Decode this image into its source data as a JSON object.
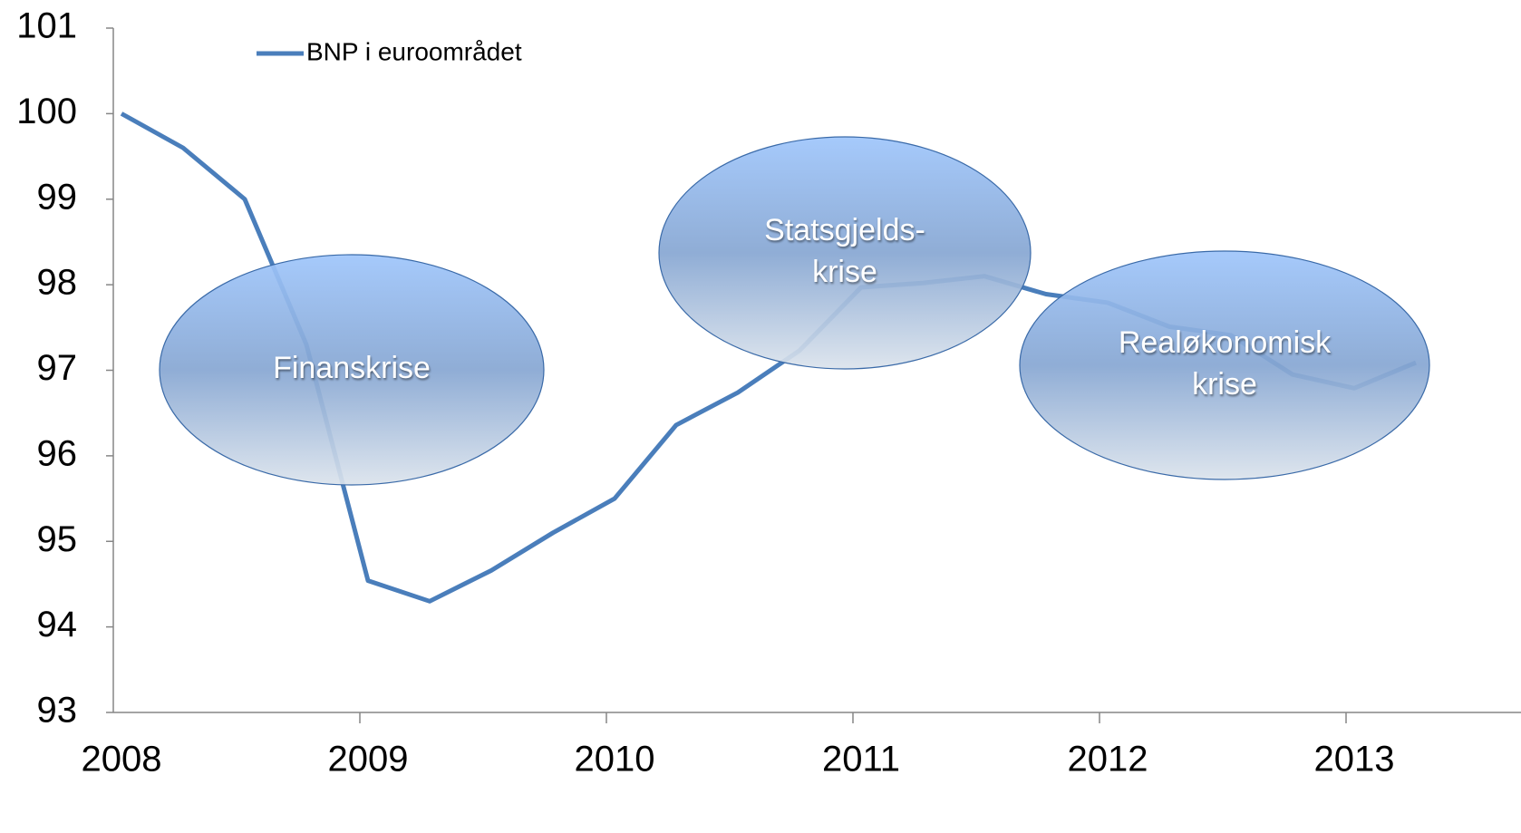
{
  "chart_data": {
    "type": "line",
    "categories": [
      "2008",
      null,
      null,
      null,
      "2009",
      null,
      null,
      null,
      "2010",
      null,
      null,
      null,
      "2011",
      null,
      null,
      null,
      "2012",
      null,
      null,
      null,
      "2013",
      null
    ],
    "series": [
      {
        "name": "BNP i euroområdet",
        "color": "#4a7ebb",
        "values": [
          100.0,
          99.6,
          99.0,
          97.3,
          94.54,
          94.3,
          94.66,
          95.1,
          95.5,
          96.36,
          96.74,
          97.23,
          97.97,
          98.02,
          98.1,
          97.89,
          97.79,
          97.51,
          97.41,
          96.95,
          96.79,
          97.09
        ]
      }
    ],
    "ylim": [
      93,
      101
    ],
    "yticks": [
      93,
      94,
      95,
      96,
      97,
      98,
      99,
      100,
      101
    ],
    "legend": "top-left",
    "annotations": [
      {
        "lines": [
          "Finanskrise"
        ]
      },
      {
        "lines": [
          "Statsgjelds-",
          "krise"
        ]
      },
      {
        "lines": [
          "Realøkonomisk",
          "krise"
        ]
      }
    ]
  }
}
